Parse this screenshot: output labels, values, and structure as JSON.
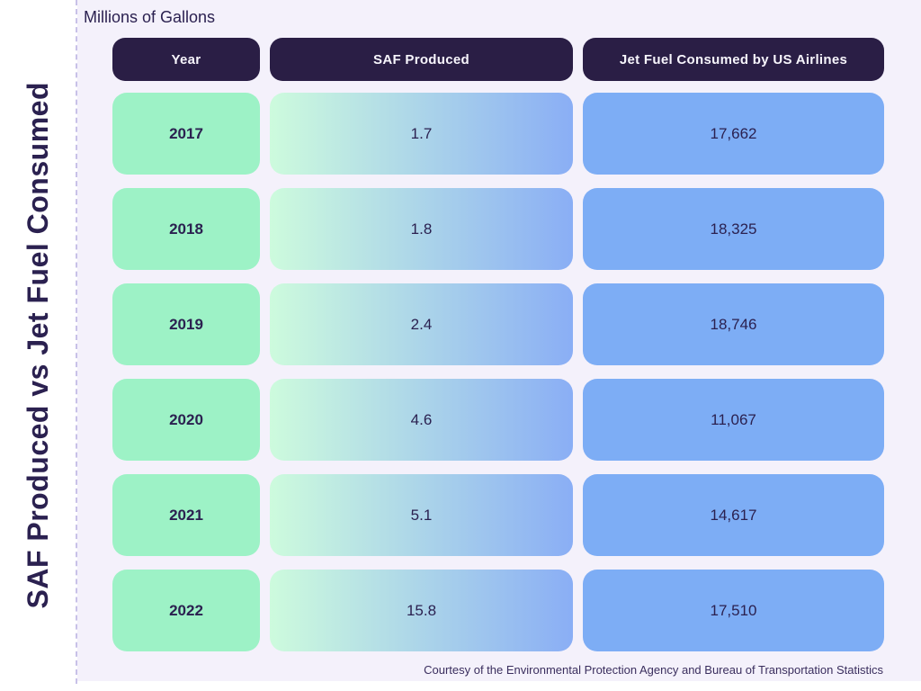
{
  "page": {
    "title_vertical": "SAF Produced vs Jet Fuel Consumed",
    "subtitle": "Millions of Gallons",
    "footer": "Courtesy of the Environmental Protection Agency and Bureau of Transportation Statistics"
  },
  "colors": {
    "background": "#f4f1fb",
    "sidebar": "#ffffff",
    "header_pill": "#2a1e45",
    "header_text": "#f7f5fc",
    "year_cell_green": "#9df2c6",
    "saf_gradient_start": "#cdfbdd",
    "saf_gradient_end": "#8aaef5",
    "jet_cell_blue": "#7dadf5",
    "dark_text": "#2b2150",
    "divider_dash": "#c8c1e8"
  },
  "chart_data": {
    "type": "table",
    "title": "SAF Produced vs Jet Fuel Consumed",
    "units": "Millions of Gallons",
    "columns": [
      "Year",
      "SAF Produced",
      "Jet Fuel Consumed by US Airlines"
    ],
    "rows": [
      {
        "year": "2017",
        "saf": "1.7",
        "jet": "17,662"
      },
      {
        "year": "2018",
        "saf": "1.8",
        "jet": "18,325"
      },
      {
        "year": "2019",
        "saf": "2.4",
        "jet": "18,746"
      },
      {
        "year": "2020",
        "saf": "4.6",
        "jet": "11,067"
      },
      {
        "year": "2021",
        "saf": "5.1",
        "jet": "14,617"
      },
      {
        "year": "2022",
        "saf": "15.8",
        "jet": "17,510"
      }
    ],
    "series_numeric": {
      "categories": [
        2017,
        2018,
        2019,
        2020,
        2021,
        2022
      ],
      "series": [
        {
          "name": "SAF Produced",
          "values": [
            1.7,
            1.8,
            2.4,
            4.6,
            5.1,
            15.8
          ]
        },
        {
          "name": "Jet Fuel Consumed by US Airlines",
          "values": [
            17662,
            18325,
            18746,
            11067,
            14617,
            17510
          ]
        }
      ]
    },
    "attribution": "Courtesy of the Environmental Protection Agency and Bureau of Transportation Statistics"
  }
}
